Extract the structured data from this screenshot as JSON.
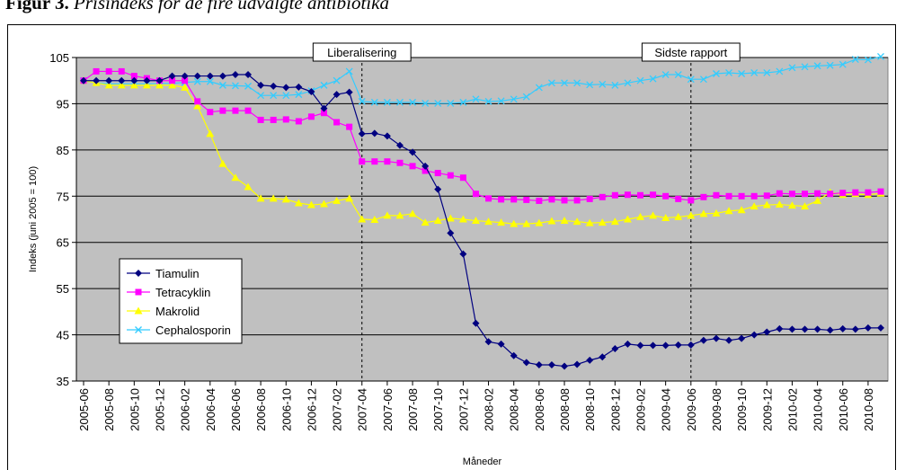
{
  "caption": {
    "label": "Figur 3.",
    "text": " Prisindeks for de fire udvalgte antibiotika"
  },
  "chart_data": {
    "type": "line",
    "xlabel": "Måneder",
    "ylabel": "Indeks (juni 2005 = 100)",
    "ylim": [
      35,
      105
    ],
    "yticks": [
      35,
      45,
      55,
      65,
      75,
      85,
      95,
      105
    ],
    "grid": true,
    "legend_position": "left-bottom",
    "background": "#c0c0c0",
    "x": [
      "2005-06",
      "2005-07",
      "2005-08",
      "2005-09",
      "2005-10",
      "2005-11",
      "2005-12",
      "2006-01",
      "2006-02",
      "2006-03",
      "2006-04",
      "2006-05",
      "2006-06",
      "2006-07",
      "2006-08",
      "2006-09",
      "2006-10",
      "2006-11",
      "2006-12",
      "2007-01",
      "2007-02",
      "2007-03",
      "2007-04",
      "2007-05",
      "2007-06",
      "2007-07",
      "2007-08",
      "2007-09",
      "2007-10",
      "2007-11",
      "2007-12",
      "2008-01",
      "2008-02",
      "2008-03",
      "2008-04",
      "2008-05",
      "2008-06",
      "2008-07",
      "2008-08",
      "2008-09",
      "2008-10",
      "2008-11",
      "2008-12",
      "2009-01",
      "2009-02",
      "2009-03",
      "2009-04",
      "2009-05",
      "2009-06",
      "2009-07",
      "2009-08",
      "2009-09",
      "2009-10",
      "2009-11",
      "2009-12",
      "2010-01",
      "2010-02",
      "2010-03",
      "2010-04",
      "2010-05",
      "2010-06",
      "2010-07",
      "2010-08",
      "2010-09"
    ],
    "x_tick_labels": [
      "2005-06",
      "2005-08",
      "2005-10",
      "2005-12",
      "2006-02",
      "2006-04",
      "2006-06",
      "2006-08",
      "2006-10",
      "2006-12",
      "2007-02",
      "2007-04",
      "2007-06",
      "2007-08",
      "2007-10",
      "2007-12",
      "2008-02",
      "2008-04",
      "2008-06",
      "2008-08",
      "2008-10",
      "2008-12",
      "2009-02",
      "2009-04",
      "2009-06",
      "2009-08",
      "2009-10",
      "2009-12",
      "2010-02",
      "2010-04",
      "2010-06",
      "2010-08"
    ],
    "series": [
      {
        "name": "Tiamulin",
        "color": "#000080",
        "marker": "diamond",
        "values": [
          100,
          100,
          100,
          100,
          100,
          100,
          100,
          101,
          101,
          101,
          101,
          101,
          101.3,
          101.3,
          99,
          98.8,
          98.5,
          98.6,
          97.6,
          94,
          97,
          97.5,
          88.5,
          88.6,
          88,
          86,
          84.5,
          81.5,
          76.5,
          67,
          62.5,
          47.5,
          43.5,
          43,
          40.5,
          39,
          38.5,
          38.5,
          38.2,
          38.6,
          39.5,
          40.2,
          42,
          43,
          42.7,
          42.7,
          42.7,
          42.8,
          42.8,
          43.8,
          44.2,
          43.8,
          44.2,
          45,
          45.6,
          46.3,
          46.2,
          46.2,
          46.2,
          46,
          46.3,
          46.2,
          46.5,
          46.5
        ]
      },
      {
        "name": "Tetracyklin",
        "color": "#ff00ff",
        "marker": "square",
        "values": [
          100,
          102,
          102,
          102,
          101,
          100.5,
          100,
          100,
          100,
          95.5,
          93.2,
          93.5,
          93.5,
          93.5,
          91.5,
          91.5,
          91.6,
          91.2,
          92.2,
          93,
          91,
          90,
          82.5,
          82.5,
          82.5,
          82.2,
          81.5,
          80.5,
          80,
          79.5,
          79,
          75.5,
          74.5,
          74.3,
          74.3,
          74.2,
          74,
          74.3,
          74.1,
          74.1,
          74.4,
          74.8,
          75.2,
          75.3,
          75.2,
          75.3,
          75,
          74.4,
          74.1,
          74.8,
          75.2,
          75,
          75,
          75,
          75.1,
          75.6,
          75.5,
          75.5,
          75.6,
          75.5,
          75.7,
          75.8,
          75.8,
          76
        ]
      },
      {
        "name": "Makrolid",
        "color": "#ffff00",
        "marker": "triangle",
        "values": [
          100,
          99.5,
          99,
          99,
          99,
          99,
          99,
          99,
          98.5,
          94.5,
          88.5,
          82,
          79,
          77,
          74.5,
          74.5,
          74.3,
          73.5,
          73.1,
          73.3,
          74,
          74.5,
          70,
          69.9,
          70.8,
          70.8,
          71.2,
          69.3,
          69.7,
          70.2,
          70,
          69.7,
          69.5,
          69.3,
          69,
          69,
          69.2,
          69.6,
          69.7,
          69.5,
          69.2,
          69.3,
          69.5,
          70,
          70.5,
          70.8,
          70.3,
          70.5,
          70.8,
          71.2,
          71.3,
          71.8,
          72,
          72.8,
          73.1,
          73.2,
          73,
          72.8,
          74,
          75.8,
          75.3,
          75.5,
          75.3,
          75.6
        ]
      },
      {
        "name": "Cephalosporin",
        "color": "#33ccff",
        "marker": "x",
        "values": [
          100,
          99.5,
          99.3,
          99.3,
          99.3,
          99.3,
          99.4,
          99.4,
          99.6,
          99.8,
          99.8,
          99,
          98.9,
          98.8,
          96.8,
          96.8,
          96.8,
          97,
          97.8,
          99,
          100,
          102,
          95.5,
          95.3,
          95.3,
          95.3,
          95.3,
          95.1,
          95.1,
          95.1,
          95.3,
          96,
          95.5,
          95.6,
          96,
          96.5,
          98.5,
          99.5,
          99.5,
          99.5,
          99.1,
          99.2,
          99,
          99.5,
          100,
          100.4,
          101.3,
          101.3,
          100.3,
          100.3,
          101.5,
          101.7,
          101.5,
          101.7,
          101.7,
          102,
          102.8,
          103,
          103.2,
          103.3,
          103.5,
          104.6,
          104.5,
          105.2
        ]
      }
    ],
    "annotations": [
      {
        "label": "Liberalisering",
        "x": "2007-04"
      },
      {
        "label": "Sidste rapport",
        "x": "2009-06"
      }
    ]
  }
}
